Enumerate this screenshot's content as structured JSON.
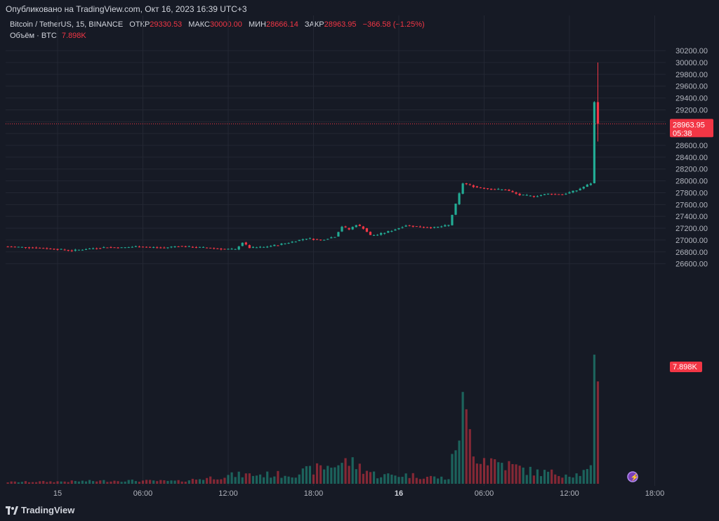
{
  "header": {
    "published": "Опубликовано на TradingView.com, Окт 16, 2023 16:39 UTC+3"
  },
  "legend": {
    "symbol": "Bitcoin / TetherUS, 15, BINANCE",
    "open_label": "ОТКР",
    "open_value": "29330.53",
    "high_label": "МАКС",
    "high_value": "30000.00",
    "low_label": "МИН",
    "low_value": "28666.14",
    "close_label": "ЗАКР",
    "close_value": "28963.95",
    "change": "−366.58 (−1.25%)",
    "volume_label": "Объём · BTC",
    "volume_value": "7.898K"
  },
  "price_badge": {
    "price": "28963.95",
    "countdown": "05:38"
  },
  "volume_badge": "7.898K",
  "footer": {
    "brand": "TradingView"
  },
  "colors": {
    "up": "#22ab94",
    "down": "#f23645",
    "background": "#161a25",
    "grid": "#232733",
    "text": "#b2b5be"
  },
  "chart_data": {
    "type": "candlestick",
    "interval": "15",
    "y_axis": {
      "ticks": [
        "30200.00",
        "30000.00",
        "29800.00",
        "29600.00",
        "29400.00",
        "29200.00",
        "29000.00",
        "28800.00",
        "28600.00",
        "28400.00",
        "28200.00",
        "28000.00",
        "27800.00",
        "27600.00",
        "27400.00",
        "27200.00",
        "27000.00",
        "26800.00",
        "26600.00"
      ],
      "range": [
        26500,
        30260
      ]
    },
    "x_axis": {
      "ticks": [
        "15",
        "06:00",
        "12:00",
        "18:00",
        "16",
        "06:00",
        "12:00",
        "18:00"
      ]
    },
    "current_price": 28963.95,
    "price_series": [
      {
        "h": 0,
        "p": 26890
      },
      {
        "h": 2,
        "p": 26870
      },
      {
        "h": 3.5,
        "p": 26845
      },
      {
        "h": 4.5,
        "p": 26820
      },
      {
        "h": 5.5,
        "p": 26850
      },
      {
        "h": 7,
        "p": 26880
      },
      {
        "h": 8,
        "p": 26870
      },
      {
        "h": 9,
        "p": 26890
      },
      {
        "h": 10,
        "p": 26880
      },
      {
        "h": 11,
        "p": 26870
      },
      {
        "h": 12,
        "p": 26900
      },
      {
        "h": 13,
        "p": 26880
      },
      {
        "h": 14,
        "p": 26870
      },
      {
        "h": 15,
        "p": 26850
      },
      {
        "h": 16,
        "p": 26840
      },
      {
        "h": 16.5,
        "p": 26960
      },
      {
        "h": 17,
        "p": 26870
      },
      {
        "h": 18,
        "p": 26880
      },
      {
        "h": 19,
        "p": 26920
      },
      {
        "h": 20,
        "p": 26970
      },
      {
        "h": 21,
        "p": 27030
      },
      {
        "h": 22,
        "p": 27000
      },
      {
        "h": 23,
        "p": 27060
      },
      {
        "h": 23.5,
        "p": 27230
      },
      {
        "h": 24,
        "p": 27180
      },
      {
        "h": 24.5,
        "p": 27260
      },
      {
        "h": 25,
        "p": 27200
      },
      {
        "h": 25.5,
        "p": 27080
      },
      {
        "h": 26,
        "p": 27090
      },
      {
        "h": 27,
        "p": 27160
      },
      {
        "h": 28,
        "p": 27250
      },
      {
        "h": 29,
        "p": 27220
      },
      {
        "h": 30,
        "p": 27210
      },
      {
        "h": 31,
        "p": 27250
      },
      {
        "h": 32,
        "p": 27960
      },
      {
        "h": 33,
        "p": 27890
      },
      {
        "h": 34,
        "p": 27860
      },
      {
        "h": 35,
        "p": 27850
      },
      {
        "h": 36,
        "p": 27760
      },
      {
        "h": 37,
        "p": 27740
      },
      {
        "h": 38,
        "p": 27780
      },
      {
        "h": 39,
        "p": 27770
      },
      {
        "h": 40,
        "p": 27840
      },
      {
        "h": 41,
        "p": 27960
      },
      {
        "h": 41.25,
        "p": 29330
      },
      {
        "h": 41.5,
        "p": 28964
      }
    ],
    "volume_series": [
      {
        "h": 0,
        "v": 30
      },
      {
        "h": 4,
        "v": 40
      },
      {
        "h": 8,
        "v": 55
      },
      {
        "h": 12,
        "v": 45
      },
      {
        "h": 16,
        "v": 150
      },
      {
        "h": 20,
        "v": 160
      },
      {
        "h": 24,
        "v": 380
      },
      {
        "h": 26,
        "v": 140
      },
      {
        "h": 28,
        "v": 150
      },
      {
        "h": 31,
        "v": 90
      },
      {
        "h": 32,
        "v": 1250
      },
      {
        "h": 33,
        "v": 480
      },
      {
        "h": 35,
        "v": 330
      },
      {
        "h": 37,
        "v": 200
      },
      {
        "h": 40,
        "v": 160
      },
      {
        "h": 41,
        "v": 230
      },
      {
        "h": 41.25,
        "v": 1850
      },
      {
        "h": 41.5,
        "v": 2000
      }
    ],
    "volume_range_units": [
      0,
      2500
    ]
  }
}
